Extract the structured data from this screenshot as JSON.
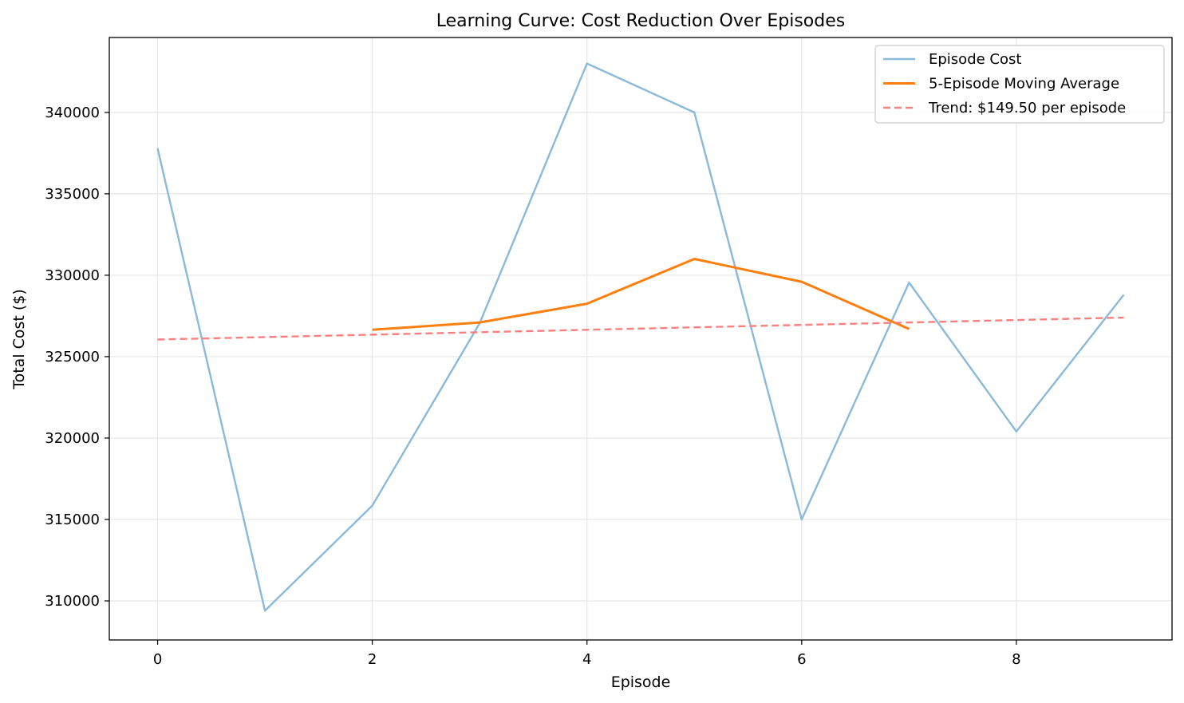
{
  "chart_data": {
    "type": "line",
    "title": "Learning Curve: Cost Reduction Over Episodes",
    "xlabel": "Episode",
    "ylabel": "Total Cost ($)",
    "xlim": [
      -0.45,
      9.45
    ],
    "ylim": [
      307600,
      344600
    ],
    "xticks": [
      0,
      2,
      4,
      6,
      8
    ],
    "xtick_labels": [
      "0",
      "2",
      "4",
      "6",
      "8"
    ],
    "yticks": [
      310000,
      315000,
      320000,
      325000,
      330000,
      335000,
      340000
    ],
    "ytick_labels": [
      "310000",
      "315000",
      "320000",
      "325000",
      "330000",
      "335000",
      "340000"
    ],
    "grid": true,
    "legend_position": "top-right",
    "series": [
      {
        "name": "Episode Cost",
        "color": "#8bb9da",
        "style": "solid",
        "x": [
          0,
          1,
          2,
          3,
          4,
          5,
          6,
          7,
          8,
          9
        ],
        "values": [
          337800,
          309400,
          315850,
          327050,
          343000,
          340000,
          315000,
          329550,
          320400,
          328800
        ]
      },
      {
        "name": "5-Episode Moving Average",
        "color": "#ff7f0e",
        "style": "solid",
        "x": [
          2,
          3,
          4,
          5,
          6,
          7
        ],
        "values": [
          326650,
          327100,
          328250,
          331000,
          329600,
          326700
        ]
      },
      {
        "name": "Trend: $149.50 per episode",
        "color": "#ff7f7f",
        "style": "dashed",
        "x": [
          0,
          9
        ],
        "values": [
          326050,
          327400
        ]
      }
    ]
  }
}
